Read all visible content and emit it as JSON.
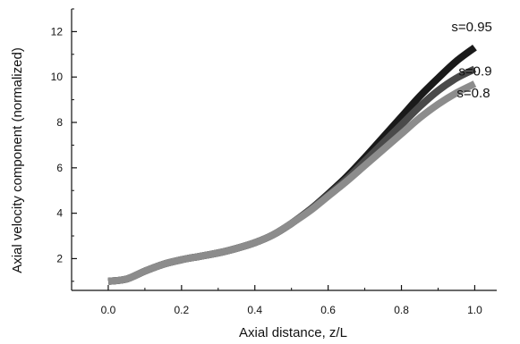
{
  "chart_data": {
    "type": "line",
    "title": "",
    "xlabel": "Axial distance, z/L",
    "ylabel": "Axial velocity component (normalized)",
    "xlim": [
      -0.1,
      1.06
    ],
    "ylim": [
      0.6,
      13
    ],
    "xticks": [
      0.0,
      0.2,
      0.4,
      0.6,
      0.8,
      1.0
    ],
    "xtick_labels": [
      "0.0",
      "0.2",
      "0.4",
      "0.6",
      "0.8",
      "1.0"
    ],
    "yticks": [
      2,
      4,
      6,
      8,
      10,
      12
    ],
    "ytick_labels": [
      "2",
      "4",
      "6",
      "8",
      "10",
      "12"
    ],
    "grid": false,
    "legend": "inline labels at line ends",
    "series": [
      {
        "name": "s=0.8",
        "color": "#8c8c8c",
        "x": [
          0.0,
          0.05,
          0.1,
          0.15,
          0.2,
          0.25,
          0.3,
          0.35,
          0.4,
          0.45,
          0.5,
          0.55,
          0.6,
          0.65,
          0.7,
          0.75,
          0.8,
          0.85,
          0.9,
          0.95,
          1.0
        ],
        "y": [
          1.0,
          1.1,
          1.45,
          1.75,
          1.95,
          2.1,
          2.25,
          2.45,
          2.7,
          3.05,
          3.55,
          4.1,
          4.75,
          5.4,
          6.1,
          6.8,
          7.5,
          8.2,
          8.8,
          9.3,
          9.7
        ]
      },
      {
        "name": "s=0.9",
        "color": "#4a4a4a",
        "x": [
          0.0,
          0.05,
          0.1,
          0.15,
          0.2,
          0.25,
          0.3,
          0.35,
          0.4,
          0.45,
          0.5,
          0.55,
          0.6,
          0.65,
          0.7,
          0.75,
          0.8,
          0.85,
          0.9,
          0.95,
          1.0
        ],
        "y": [
          1.0,
          1.1,
          1.45,
          1.75,
          1.95,
          2.1,
          2.25,
          2.45,
          2.7,
          3.05,
          3.55,
          4.15,
          4.8,
          5.5,
          6.3,
          7.1,
          7.9,
          8.7,
          9.4,
          9.95,
          10.35
        ]
      },
      {
        "name": "s=0.95",
        "color": "#1a1a1a",
        "x": [
          0.0,
          0.05,
          0.1,
          0.15,
          0.2,
          0.25,
          0.3,
          0.35,
          0.4,
          0.45,
          0.5,
          0.55,
          0.6,
          0.65,
          0.7,
          0.75,
          0.8,
          0.85,
          0.9,
          0.95,
          1.0
        ],
        "y": [
          1.0,
          1.1,
          1.45,
          1.75,
          1.95,
          2.1,
          2.25,
          2.45,
          2.7,
          3.05,
          3.55,
          4.15,
          4.85,
          5.6,
          6.45,
          7.35,
          8.25,
          9.15,
          9.95,
          10.7,
          11.3
        ]
      }
    ]
  }
}
